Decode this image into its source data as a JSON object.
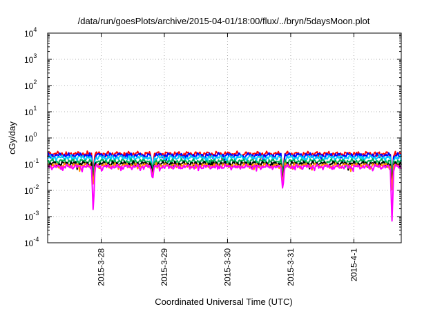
{
  "chart_data": {
    "type": "line",
    "title": "/data/run/goesPlots/archive/2015-04-01/18:00/flux/../bryn/5daysMoon.plot",
    "xlabel": "Coordinated Universal Time (UTC)",
    "ylabel": "cGy/day",
    "yscale": "log",
    "ylim": [
      0.0001,
      10000
    ],
    "xlim": [
      "2015-03-27 03:40",
      "2015-04-01 18:00"
    ],
    "grid": true,
    "y_ticks": [
      {
        "base": "10",
        "exp": "4"
      },
      {
        "base": "10",
        "exp": "3"
      },
      {
        "base": "10",
        "exp": "2"
      },
      {
        "base": "10",
        "exp": "1"
      },
      {
        "base": "10",
        "exp": "0"
      },
      {
        "base": "10",
        "exp": "-1"
      },
      {
        "base": "10",
        "exp": "-2"
      },
      {
        "base": "10",
        "exp": "-3"
      },
      {
        "base": "10",
        "exp": "-4"
      }
    ],
    "x_ticks": [
      {
        "label": "2015-3-28",
        "date": "2015-03-28"
      },
      {
        "label": "2015-3-29",
        "date": "2015-03-29"
      },
      {
        "label": "2015-3-30",
        "date": "2015-03-30"
      },
      {
        "label": "2015-3-31",
        "date": "2015-03-31"
      },
      {
        "label": "2015-4-1",
        "date": "2015-04-01"
      }
    ],
    "series": [
      {
        "color": "#ff0000",
        "level": 0.25,
        "dips": [
          {
            "date": "2015-03-27 21:00",
            "value": 0.05
          },
          {
            "date": "2015-03-28 19:30",
            "value": 0.05
          },
          {
            "date": "2015-03-30 21:00",
            "value": 0.04
          },
          {
            "date": "2015-04-01 14:30",
            "value": 0.04
          }
        ]
      },
      {
        "color": "#0000ff",
        "level": 0.22,
        "dips": [
          {
            "date": "2015-03-27 21:00",
            "value": 0.02
          },
          {
            "date": "2015-03-28 19:30",
            "value": 0.04
          },
          {
            "date": "2015-03-30 21:00",
            "value": 0.02
          },
          {
            "date": "2015-04-01 14:30",
            "value": 0.02
          }
        ]
      },
      {
        "color": "#00ccff",
        "level": 0.18,
        "dips": [
          {
            "date": "2015-03-27 21:00",
            "value": 0.03
          },
          {
            "date": "2015-03-28 19:30",
            "value": 0.05
          },
          {
            "date": "2015-03-30 21:00",
            "value": 0.03
          },
          {
            "date": "2015-04-01 14:30",
            "value": 0.03
          }
        ]
      },
      {
        "color": "#00b050",
        "level": 0.13,
        "dips": [
          {
            "date": "2015-03-27 21:00",
            "value": 0.03
          },
          {
            "date": "2015-03-28 19:30",
            "value": 0.05
          },
          {
            "date": "2015-03-30 21:00",
            "value": 0.03
          },
          {
            "date": "2015-04-01 14:30",
            "value": 0.02
          }
        ]
      },
      {
        "color": "#000000",
        "level": 0.105,
        "dips": [
          {
            "date": "2015-03-27 21:00",
            "value": 0.02
          },
          {
            "date": "2015-03-28 19:30",
            "value": 0.04
          },
          {
            "date": "2015-03-30 21:00",
            "value": 0.02
          },
          {
            "date": "2015-04-01 14:30",
            "value": 0.02
          }
        ]
      },
      {
        "color": "#ff8c00",
        "level": 0.09,
        "dips": [
          {
            "date": "2015-03-27 21:00",
            "value": 0.015
          },
          {
            "date": "2015-03-28 19:30",
            "value": 0.03
          },
          {
            "date": "2015-03-30 21:00",
            "value": 0.015
          },
          {
            "date": "2015-04-01 14:30",
            "value": 0.01
          }
        ]
      },
      {
        "color": "#ff00ff",
        "level": 0.08,
        "dips": [
          {
            "date": "2015-03-27 21:00",
            "value": 0.0013
          },
          {
            "date": "2015-03-28 19:30",
            "value": 0.025
          },
          {
            "date": "2015-03-30 21:00",
            "value": 0.009
          },
          {
            "date": "2015-04-01 14:30",
            "value": 0.0006
          }
        ]
      }
    ]
  }
}
